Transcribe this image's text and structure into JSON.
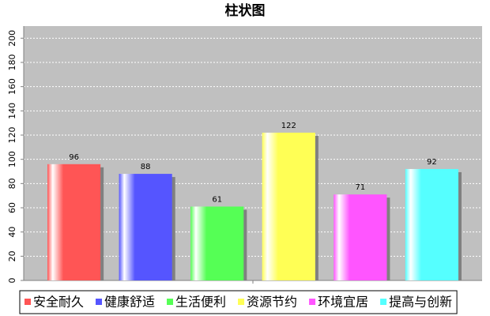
{
  "chart_data": {
    "type": "bar",
    "title": "柱状图",
    "categories": [
      null
    ],
    "series": [
      {
        "name": "安全耐久",
        "color": "#ff5555",
        "values": [
          96
        ]
      },
      {
        "name": "健康舒适",
        "color": "#5555ff",
        "values": [
          88
        ]
      },
      {
        "name": "生活便利",
        "color": "#55ff55",
        "values": [
          61
        ]
      },
      {
        "name": "资源节约",
        "color": "#ffff55",
        "values": [
          122
        ]
      },
      {
        "name": "环境宜居",
        "color": "#ff55ff",
        "values": [
          71
        ]
      },
      {
        "name": "提高与创新",
        "color": "#55ffff",
        "values": [
          92
        ]
      }
    ],
    "ylim": [
      0,
      210
    ],
    "yticks": [
      0,
      20,
      40,
      60,
      80,
      100,
      120,
      140,
      160,
      180,
      200
    ],
    "grid": true,
    "legend": "bottom"
  }
}
